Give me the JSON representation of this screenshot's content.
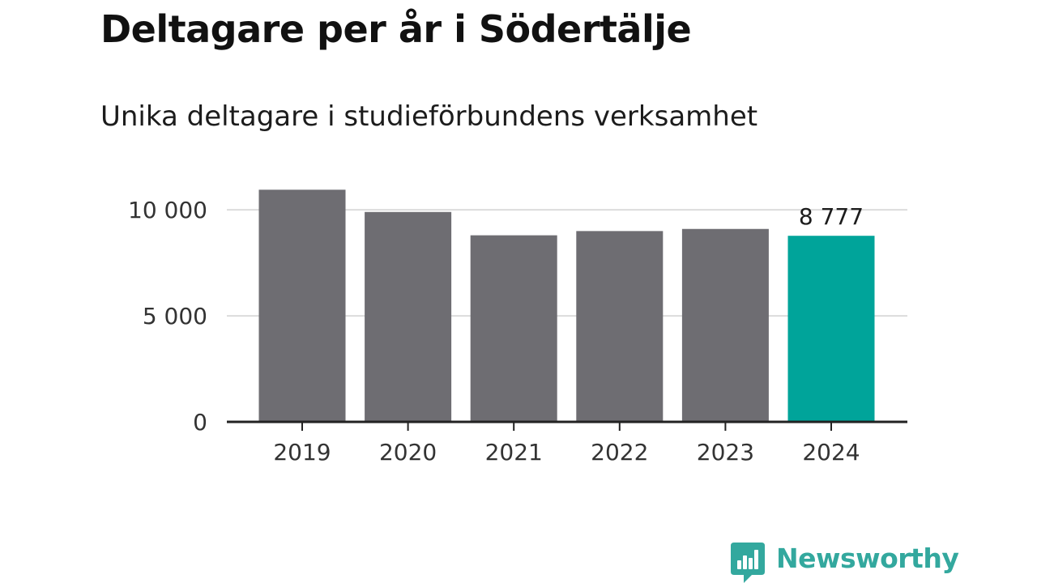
{
  "title": "Deltagare per år i Södertälje",
  "subtitle": "Unika deltagare i studieförbundens verksamhet",
  "colors": {
    "bar": "#6e6d72",
    "highlight": "#00a49a",
    "gridline": "#dcdcdc",
    "axis": "#222222",
    "label": "#333333",
    "brand": "#33a89e"
  },
  "chart_data": {
    "type": "bar",
    "title": "Deltagare per år i Södertälje",
    "subtitle": "Unika deltagare i studieförbundens verksamhet",
    "categories": [
      "2019",
      "2020",
      "2021",
      "2022",
      "2023",
      "2024"
    ],
    "values": [
      10950,
      9900,
      8800,
      9000,
      9100,
      8777
    ],
    "highlight_index": 5,
    "data_labels": [
      {
        "category": "2024",
        "text": "8 777"
      }
    ],
    "ylim": [
      0,
      11000
    ],
    "yticks": [
      {
        "value": 0,
        "label": "0"
      },
      {
        "value": 5000,
        "label": "5 000"
      },
      {
        "value": 10000,
        "label": "10 000"
      }
    ],
    "xlabel": "",
    "ylabel": "",
    "grid": true,
    "legend": "none"
  },
  "brand": {
    "name": "Newsworthy",
    "icon": "bar-chart-speech-bubble-icon"
  }
}
